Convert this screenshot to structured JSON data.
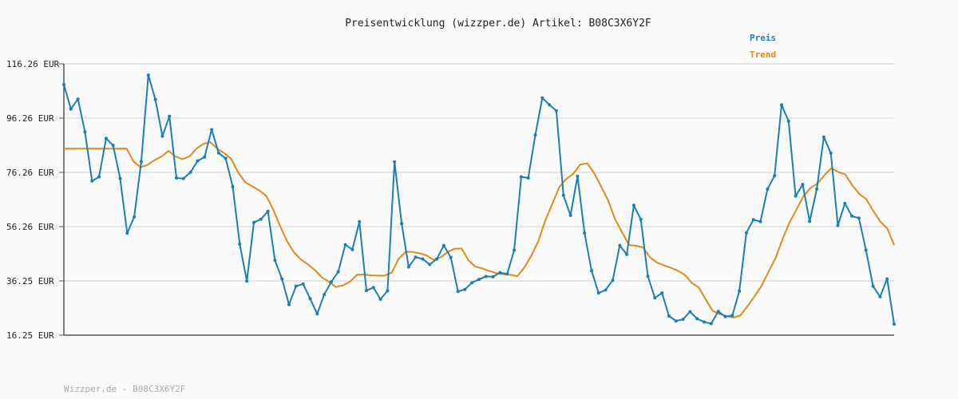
{
  "chart_data": {
    "type": "line",
    "title": "Preisentwicklung (wizzper.de) Artikel: B08C3X6Y2F",
    "xlabel": "",
    "ylabel": "",
    "ylim": [
      16.25,
      116.26
    ],
    "yticks": [
      "116.26 EUR",
      "96.26 EUR",
      "76.26 EUR",
      "56.26 EUR",
      "36.25 EUR",
      "16.25 EUR"
    ],
    "ytick_values": [
      116.26,
      96.26,
      76.26,
      56.26,
      36.25,
      16.25
    ],
    "grid": true,
    "legend_position": "top-right",
    "series": [
      {
        "name": "Preis",
        "color": "#1a7fb5",
        "values": [
          108.6,
          99.6,
          103.3,
          91.2,
          73.1,
          74.6,
          88.8,
          86.2,
          74.0,
          53.8,
          59.8,
          80.2,
          112.1,
          103.1,
          89.6,
          96.9,
          74.2,
          74.0,
          76.3,
          80.5,
          81.9,
          92.0,
          83.4,
          81.4,
          71.0,
          49.8,
          36.2,
          57.8,
          59.0,
          61.9,
          43.8,
          37.0,
          27.5,
          34.3,
          35.1,
          29.7,
          24.1,
          31.2,
          35.9,
          39.6,
          49.6,
          47.8,
          58.1,
          32.7,
          33.8,
          29.5,
          32.6,
          80.1,
          57.4,
          41.4,
          45.0,
          44.3,
          42.3,
          44.3,
          49.3,
          44.9,
          32.4,
          33.1,
          35.6,
          36.8,
          37.9,
          37.8,
          39.3,
          38.8,
          47.6,
          74.6,
          74.2,
          90.0,
          103.7,
          101.2,
          99.0,
          67.8,
          60.4,
          74.8,
          53.9,
          40.0,
          31.8,
          32.9,
          36.5,
          49.3,
          46.0,
          64.1,
          58.9,
          38.0,
          30.0,
          31.8,
          23.3,
          21.5,
          22.1,
          24.9,
          22.3,
          21.1,
          20.5,
          25.0,
          23.1,
          23.5,
          32.5,
          54.0,
          58.8,
          58.1,
          70.1,
          75.0,
          101.1,
          95.1,
          67.5,
          71.8,
          58.2,
          70.1,
          89.3,
          83.4,
          56.7,
          64.8,
          60.1,
          59.4,
          47.6,
          34.3,
          30.4,
          37.0,
          20.3
        ]
      },
      {
        "name": "Trend",
        "color": "#e08a1e",
        "values": [
          85.0,
          85.0,
          85.0,
          85.0,
          85.0,
          85.0,
          85.0,
          85.0,
          85.0,
          85.0,
          80.2,
          78.2,
          79.0,
          80.8,
          82.1,
          84.2,
          82.1,
          81.1,
          82.1,
          85.0,
          86.8,
          87.4,
          85.0,
          83.3,
          81.2,
          76.1,
          72.6,
          71.1,
          69.6,
          67.6,
          62.6,
          56.4,
          50.8,
          46.7,
          44.1,
          42.3,
          40.2,
          37.5,
          35.9,
          34.0,
          34.6,
          35.9,
          38.5,
          38.6,
          38.3,
          38.2,
          38.2,
          39.3,
          44.5,
          47.0,
          46.9,
          46.4,
          45.6,
          44.0,
          44.9,
          46.9,
          48.1,
          48.2,
          43.8,
          41.5,
          40.8,
          39.9,
          39.1,
          38.7,
          38.5,
          38.0,
          41.2,
          45.5,
          50.9,
          58.5,
          64.6,
          70.8,
          73.8,
          75.7,
          79.1,
          79.6,
          76.0,
          71.1,
          66.0,
          59.0,
          54.2,
          49.5,
          49.2,
          48.6,
          45.0,
          43.0,
          42.0,
          41.1,
          40.0,
          38.5,
          35.5,
          33.8,
          29.4,
          25.2,
          24.0,
          23.3,
          22.7,
          23.6,
          27.0,
          30.6,
          34.4,
          39.6,
          44.6,
          51.6,
          57.8,
          62.5,
          67.5,
          70.5,
          72.1,
          75.2,
          77.8,
          76.4,
          75.5,
          71.5,
          68.3,
          66.4,
          62.1,
          58.2,
          55.6,
          49.5
        ]
      }
    ]
  },
  "footer": {
    "text": "Wizzper.de - B08C3X6Y2F"
  }
}
